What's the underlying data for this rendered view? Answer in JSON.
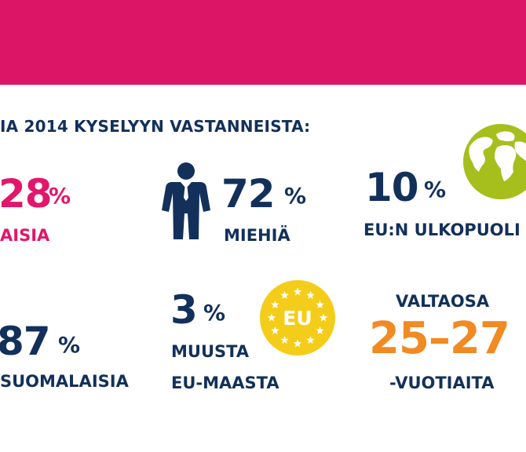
{
  "colors": {
    "banner": "#dc1567",
    "pink": "#e2166a",
    "navy": "#12305a",
    "orange": "#f18a22",
    "globe_green": "#a6bf1c",
    "eu_yellow": "#f4cd1b"
  },
  "heading": "IA 2014 KYSELYYN VASTANNEISTA:",
  "stats": {
    "women": {
      "value": "28",
      "unit": "%",
      "label": "AISIA"
    },
    "men": {
      "value": "72",
      "unit": "%",
      "label": "MIEHIÄ",
      "icon": "man-icon"
    },
    "non_eu": {
      "value": "10",
      "unit": "%",
      "label": "EU:N ULKOPUOLI",
      "icon": "globe-icon"
    },
    "finnish": {
      "value": "87",
      "unit": "%",
      "label": "SUOMALAISIA"
    },
    "other_eu": {
      "value": "3",
      "unit": "%",
      "label_line1": "MUUSTA",
      "label_line2": "EU-MAASTA",
      "icon": "eu-flag-icon",
      "icon_text": "EU"
    },
    "age": {
      "top": "VALTAOSA",
      "value": "25–27",
      "bottom": "-VUOTIAITA"
    }
  }
}
